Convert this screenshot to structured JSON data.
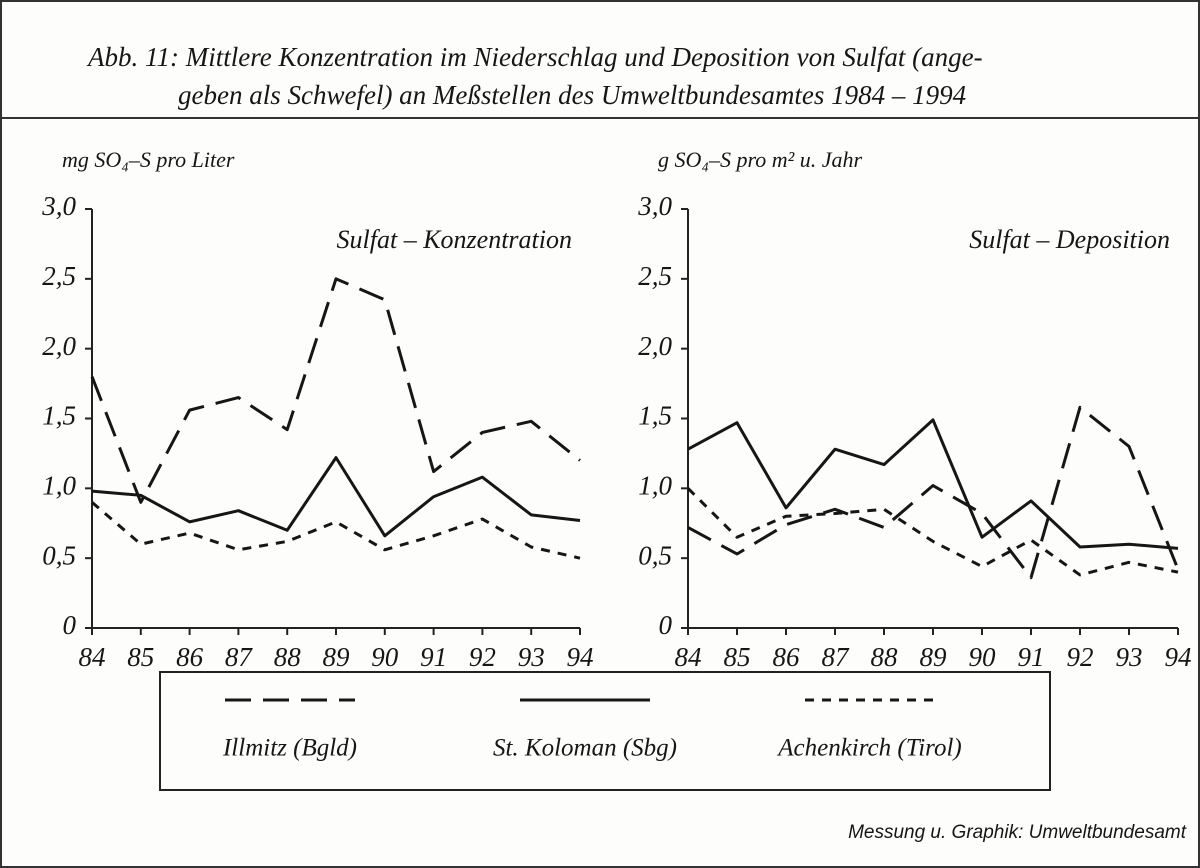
{
  "caption": [
    "Abb. 11:  Mittlere Konzentration im Niederschlag und Deposition von Sulfat (ange-",
    "geben als Schwefel) an Meßstellen des Umweltbundesamtes 1984 – 1994"
  ],
  "source": "Messung u. Graphik: Umweltbundesamt",
  "chart_data": [
    {
      "type": "line",
      "title": "Sulfat – Konzentration",
      "y_label": "mg SO₄–S pro Liter",
      "categories": [
        "84",
        "85",
        "86",
        "87",
        "88",
        "89",
        "90",
        "91",
        "92",
        "93",
        "94"
      ],
      "ylim": [
        0,
        3
      ],
      "yticks": [
        0,
        {
          "value": 0.5,
          "label": "0,5"
        },
        {
          "value": 1,
          "label": "1,0"
        },
        {
          "value": 1.5,
          "label": "1,5"
        },
        {
          "value": 2,
          "label": "2,0"
        },
        {
          "value": 2.5,
          "label": "2,5"
        },
        {
          "value": 3,
          "label": "3,0"
        }
      ],
      "series": [
        {
          "name": "Illmitz (Bgld)",
          "color": "#161616",
          "dash": "dashed",
          "values": [
            1.8,
            0.9,
            1.56,
            1.65,
            1.42,
            2.5,
            2.35,
            1.12,
            1.4,
            1.48,
            1.2
          ]
        },
        {
          "name": "St. Koloman (Sbg)",
          "color": "#161616",
          "dash": "solid",
          "values": [
            0.98,
            0.95,
            0.76,
            0.84,
            0.7,
            1.22,
            0.66,
            0.94,
            1.08,
            0.81,
            0.77
          ]
        },
        {
          "name": "Achenkirch (Tirol)",
          "color": "#161616",
          "dash": "dotted",
          "values": [
            0.9,
            0.6,
            0.68,
            0.56,
            0.62,
            0.76,
            0.56,
            0.66,
            0.78,
            0.58,
            0.5
          ]
        }
      ]
    },
    {
      "type": "line",
      "title": "Sulfat – Deposition",
      "y_label": "g SO₄–S pro m² u. Jahr",
      "categories": [
        "84",
        "85",
        "86",
        "87",
        "88",
        "89",
        "90",
        "91",
        "92",
        "93",
        "94"
      ],
      "ylim": [
        0,
        3
      ],
      "yticks": [
        0,
        {
          "value": 0.5,
          "label": "0,5"
        },
        {
          "value": 1,
          "label": "1,0"
        },
        {
          "value": 1.5,
          "label": "1,5"
        },
        {
          "value": 2,
          "label": "2,0"
        },
        {
          "value": 2.5,
          "label": "2,5"
        },
        {
          "value": 3,
          "label": "3,0"
        }
      ],
      "series": [
        {
          "color": "#161616",
          "dash": "dashed",
          "values": [
            0.72,
            0.53,
            0.74,
            0.85,
            0.72,
            1.02,
            0.82,
            0.36,
            1.58,
            1.3,
            0.42
          ]
        },
        {
          "color": "#161616",
          "dash": "solid",
          "values": [
            1.28,
            1.47,
            0.86,
            1.28,
            1.17,
            1.49,
            0.65,
            0.91,
            0.58,
            0.6,
            0.57
          ]
        },
        {
          "color": "#161616",
          "dash": "dotted",
          "values": [
            1.0,
            0.65,
            0.8,
            0.82,
            0.85,
            0.62,
            0.44,
            0.63,
            0.38,
            0.47,
            0.4
          ]
        }
      ]
    }
  ]
}
